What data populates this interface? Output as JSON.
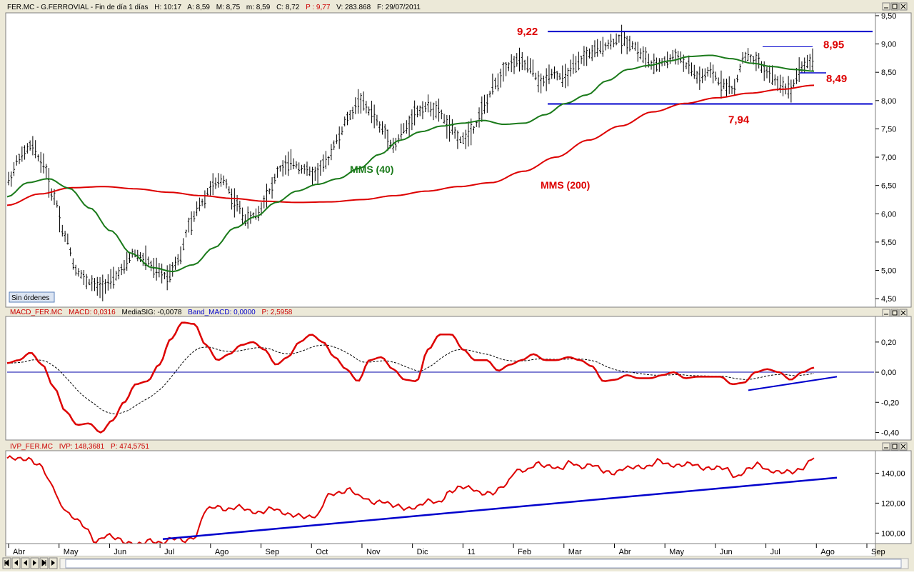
{
  "panels": {
    "price": {
      "header": {
        "symbol": "FER.MC - G.FERROVIAL - Fin de día 1 días",
        "h": "H: 10:17",
        "a": "A: 8,59",
        "m": "M: 8,75",
        "mn": "m: 8,59",
        "c": "C: 8,72",
        "p": "P : 9,77",
        "v": "V: 283.868",
        "f": "F: 29/07/2011"
      },
      "y_ticks": [
        "9,50",
        "9,00",
        "8,50",
        "8,00",
        "7,50",
        "7,00",
        "6,50",
        "6,00",
        "5,50",
        "5,00",
        "4,50"
      ],
      "y_tick_values": [
        9.5,
        9.0,
        8.5,
        8.0,
        7.5,
        7.0,
        6.5,
        6.0,
        5.5,
        5.0,
        4.5
      ],
      "badge": "Sin órdenes"
    },
    "macd": {
      "header": {
        "name": "MACD_FER.MC",
        "macd": "MACD: 0,0316",
        "sig": "MediaSIG: -0,0078",
        "band": "Band_MACD: 0,0000",
        "p": "P: 2,5958"
      },
      "y_ticks": [
        "0,20",
        "0,00",
        "-0,20",
        "-0,40"
      ],
      "y_tick_values": [
        0.2,
        0.0,
        -0.2,
        -0.4
      ]
    },
    "ivp": {
      "header": {
        "name": "IVP_FER.MC",
        "ivp": "IVP: 148,3681",
        "p": "P: 474,5751"
      },
      "y_ticks": [
        "140,00",
        "120,00",
        "100,00"
      ],
      "y_tick_values": [
        140,
        120,
        100
      ]
    }
  },
  "x_axis": {
    "months": [
      "Abr",
      "May",
      "Jun",
      "Jul",
      "Ago",
      "Sep",
      "Oct",
      "Nov",
      "Dic",
      "11",
      "Feb",
      "Mar",
      "Abr",
      "May",
      "Jun",
      "Jul",
      "Ago",
      "Sep"
    ]
  },
  "colors": {
    "price_bars": "#000000",
    "mms40": "#1a7a1a",
    "mms200": "#dd0000",
    "trend": "#0000cc",
    "macd": "#dd0000",
    "signal": "#000000",
    "ivp": "#dd0000",
    "annotation_red": "#dd0000",
    "annotation_green": "#1a7a1a"
  },
  "chart_data": [
    {
      "type": "ohlc",
      "x_start": "Abr 2010",
      "x_end": "29/07/2011",
      "series": [
        {
          "name": "MMS (40)",
          "values": [
            6.3,
            6.55,
            6.62,
            6.45,
            6.1,
            5.7,
            5.3,
            5.05,
            4.98,
            5.1,
            5.4,
            5.75,
            5.95,
            6.2,
            6.4,
            6.52,
            6.62,
            6.8,
            7.05,
            7.3,
            7.45,
            7.55,
            7.6,
            7.65,
            7.58,
            7.6,
            7.75,
            7.95,
            8.1,
            8.35,
            8.55,
            8.62,
            8.7,
            8.78,
            8.8,
            8.74,
            8.66,
            8.6,
            8.55,
            8.52
          ]
        },
        {
          "name": "MMS (200)",
          "values": [
            6.15,
            6.35,
            6.46,
            6.48,
            6.44,
            6.38,
            6.32,
            6.27,
            6.22,
            6.2,
            6.21,
            6.25,
            6.32,
            6.4,
            6.48,
            6.55,
            6.75,
            7.0,
            7.3,
            7.55,
            7.8,
            7.95,
            8.05,
            8.13,
            8.2,
            8.27
          ]
        }
      ],
      "close": [
        6.6,
        7.0,
        7.2,
        6.9,
        6.3,
        5.6,
        5.0,
        4.8,
        4.7,
        4.8,
        5.0,
        5.3,
        5.2,
        5.0,
        4.9,
        5.2,
        5.8,
        6.2,
        6.5,
        6.6,
        6.2,
        5.9,
        6.0,
        6.4,
        6.8,
        6.9,
        6.8,
        6.7,
        6.9,
        7.3,
        7.7,
        8.0,
        7.8,
        7.5,
        7.2,
        7.5,
        7.8,
        7.9,
        7.8,
        7.5,
        7.3,
        7.5,
        7.9,
        8.3,
        8.6,
        8.7,
        8.6,
        8.3,
        8.5,
        8.4,
        8.6,
        8.8,
        8.9,
        9.0,
        9.1,
        9.0,
        8.8,
        8.6,
        8.7,
        8.8,
        8.6,
        8.4,
        8.5,
        8.3,
        8.2,
        8.8,
        8.7,
        8.5,
        8.3,
        8.2,
        8.6,
        8.72
      ],
      "annotations": [
        "9,22",
        "8,95",
        "8,49",
        "7,94",
        "MMS (40)",
        "MMS (200)"
      ],
      "levels": [
        9.22,
        8.95,
        8.49,
        7.94
      ],
      "ylim": [
        4.35,
        9.55
      ]
    },
    {
      "type": "line",
      "series": [
        {
          "name": "MACD",
          "values": [
            0.06,
            0.08,
            0.13,
            0.05,
            -0.1,
            -0.26,
            -0.35,
            -0.34,
            -0.4,
            -0.32,
            -0.2,
            -0.08,
            -0.06,
            0.05,
            0.22,
            0.33,
            0.32,
            0.18,
            0.08,
            0.12,
            0.18,
            0.2,
            0.15,
            0.05,
            0.1,
            0.2,
            0.25,
            0.2,
            0.1,
            0.02,
            -0.06,
            0.08,
            0.1,
            0.02,
            -0.05,
            -0.06,
            0.15,
            0.25,
            0.25,
            0.15,
            0.08,
            0.08,
            0.01,
            0.05,
            0.08,
            0.12,
            0.08,
            0.08,
            0.1,
            0.08,
            0.04,
            -0.06,
            -0.05,
            -0.02,
            -0.04,
            -0.04,
            -0.02,
            0.0,
            -0.04,
            -0.03,
            -0.03,
            -0.03,
            -0.08,
            -0.07,
            0.0,
            0.02,
            0.0,
            -0.05,
            0.0,
            0.03
          ]
        }
      ],
      "ylim": [
        -0.45,
        0.37
      ]
    },
    {
      "type": "line",
      "series": [
        {
          "name": "IVP",
          "values": [
            150,
            149,
            150,
            145,
            132,
            118,
            110,
            104,
            95,
            98,
            96,
            94,
            92,
            95,
            94,
            96,
            95,
            98,
            115,
            118,
            116,
            117,
            115,
            114,
            116,
            114,
            112,
            110,
            112,
            125,
            126,
            130,
            124,
            120,
            122,
            118,
            116,
            118,
            121,
            120,
            128,
            130,
            130,
            127,
            126,
            132,
            142,
            141,
            147,
            145,
            142,
            148,
            144,
            145,
            142,
            140,
            143,
            145,
            144,
            148,
            146,
            145,
            146,
            144,
            143,
            143,
            138,
            142,
            146,
            142,
            140,
            141,
            144,
            150
          ]
        }
      ],
      "ylim": [
        93,
        155
      ]
    }
  ]
}
